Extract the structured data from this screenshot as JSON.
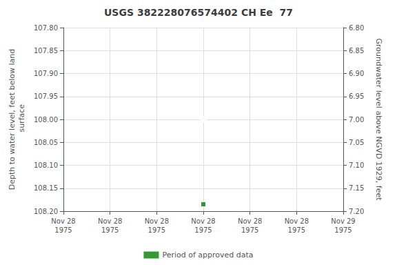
{
  "chart_data": {
    "type": "scatter",
    "title": "USGS 382228076574402 CH Ee  77",
    "xlabel_left_note_absent": null,
    "ylabel": "Depth to water level, feet below land\n surface",
    "y2label": "Groundwater level above NGVD 1929, feet",
    "categories": [
      "Nov 28\n1975",
      "Nov 28\n1975",
      "Nov 28\n1975",
      "Nov 28\n1975",
      "Nov 28\n1975",
      "Nov 28\n1975",
      "Nov 29\n1975"
    ],
    "series": [
      {
        "color": "#0000cc",
        "marker": "circle",
        "values": [
          null,
          null,
          null,
          108.0,
          null,
          null,
          null
        ]
      },
      {
        "name": "Period of approved data",
        "color": "#008000",
        "marker": "square",
        "values": [
          null,
          null,
          null,
          108.185,
          null,
          null,
          null
        ]
      }
    ],
    "ylim": [
      108.2,
      107.8
    ],
    "yticks": [
      {
        "value": 107.8,
        "label": "107.80"
      },
      {
        "value": 107.85,
        "label": "107.85"
      },
      {
        "value": 107.9,
        "label": "107.90"
      },
      {
        "value": 107.95,
        "label": "107.95"
      },
      {
        "value": 108.0,
        "label": "108.00"
      },
      {
        "value": 108.05,
        "label": "108.05"
      },
      {
        "value": 108.1,
        "label": "108.10"
      },
      {
        "value": 108.15,
        "label": "108.15"
      },
      {
        "value": 108.2,
        "label": "108.20"
      }
    ],
    "y2lim": [
      7.2,
      6.8
    ],
    "y2ticks": [
      {
        "value": 7.2,
        "label": "7.20"
      },
      {
        "value": 7.15,
        "label": "7.15"
      },
      {
        "value": 7.1,
        "label": "7.10"
      },
      {
        "value": 7.05,
        "label": "7.05"
      },
      {
        "value": 7.0,
        "label": "7.00"
      },
      {
        "value": 6.95,
        "label": "6.95"
      },
      {
        "value": 6.9,
        "label": "6.90"
      },
      {
        "value": 6.85,
        "label": "6.85"
      },
      {
        "value": 6.8,
        "label": "6.80"
      }
    ],
    "grid": true,
    "legend": "bottom"
  }
}
